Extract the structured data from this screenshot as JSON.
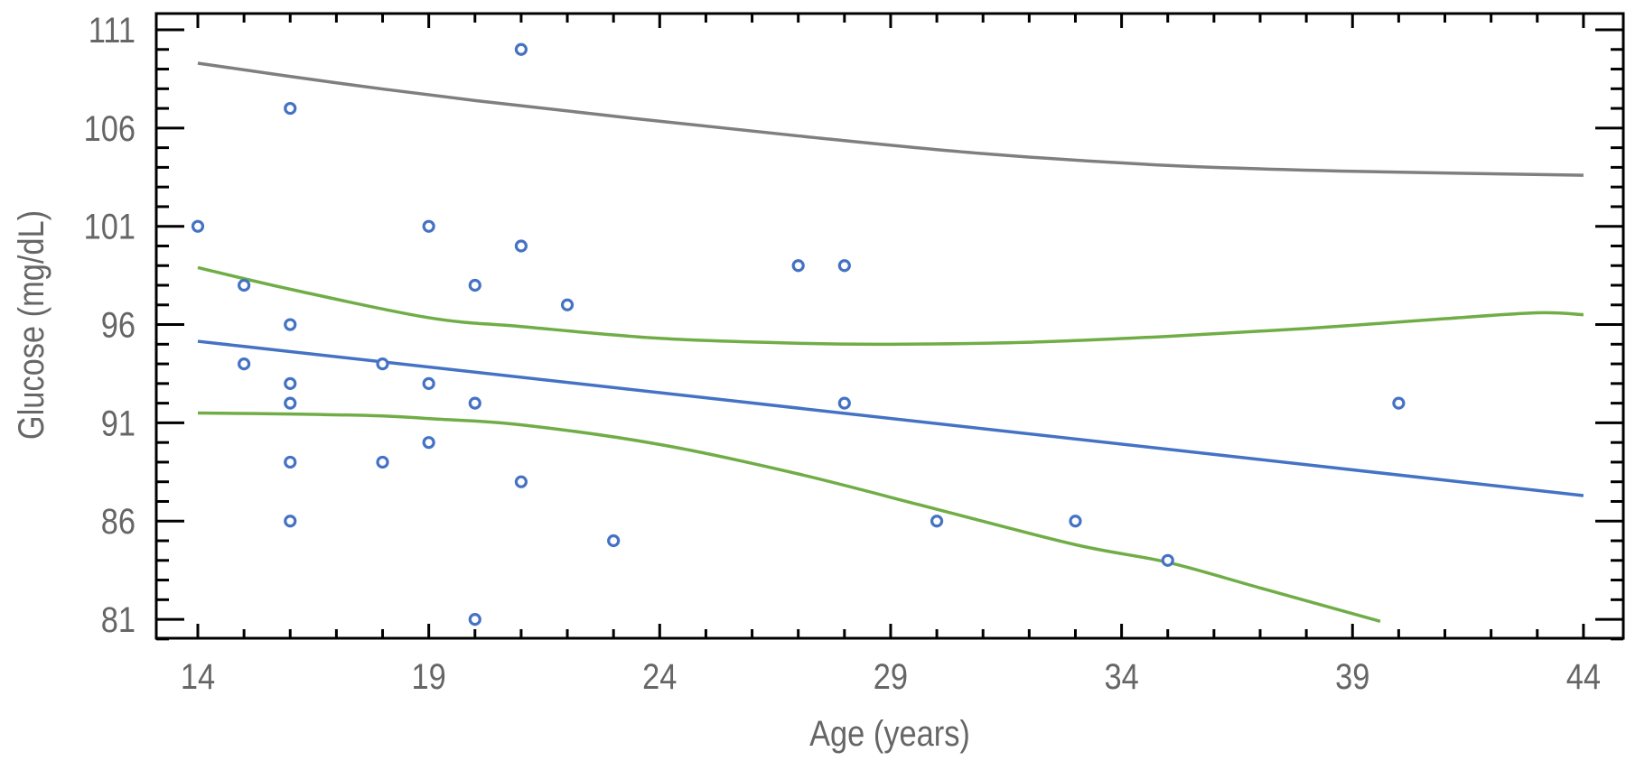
{
  "chart_data": {
    "type": "scatter",
    "title": "",
    "xlabel": "Age (years)",
    "ylabel": "Glucose (mg/dL)",
    "xlim": [
      13.1,
      44.9
    ],
    "ylim": [
      80.0,
      111.8
    ],
    "xticks": [
      14,
      19,
      24,
      29,
      34,
      39,
      44
    ],
    "yticks": [
      81,
      86,
      91,
      96,
      101,
      106,
      111
    ],
    "x_minor_step": 1,
    "y_minor_step": 1,
    "grid": false,
    "legend": "none",
    "colors": {
      "points": "#4472C4",
      "fit": "#4472C4",
      "confidence": "#70AD47",
      "prediction": "#7F7F7F",
      "axis": "#000000",
      "text": "#666666"
    },
    "series": [
      {
        "name": "Observations",
        "kind": "scatter",
        "points": [
          [
            14,
            101
          ],
          [
            15,
            98
          ],
          [
            15,
            94
          ],
          [
            16,
            107
          ],
          [
            16,
            96
          ],
          [
            16,
            93
          ],
          [
            16,
            92
          ],
          [
            16,
            89
          ],
          [
            16,
            86
          ],
          [
            18,
            94
          ],
          [
            18,
            89
          ],
          [
            19,
            101
          ],
          [
            19,
            93
          ],
          [
            19,
            90
          ],
          [
            20,
            98
          ],
          [
            20,
            92
          ],
          [
            20,
            81
          ],
          [
            21,
            110
          ],
          [
            21,
            100
          ],
          [
            21,
            88
          ],
          [
            22,
            97
          ],
          [
            23,
            85
          ],
          [
            27,
            99
          ],
          [
            28,
            99
          ],
          [
            28,
            92
          ],
          [
            30,
            86
          ],
          [
            33,
            86
          ],
          [
            35,
            84
          ],
          [
            40,
            92
          ]
        ]
      },
      {
        "name": "Regression fit",
        "kind": "line",
        "points": [
          [
            14,
            95.15
          ],
          [
            44,
            87.3
          ]
        ]
      },
      {
        "name": "Upper confidence band",
        "kind": "line",
        "points": [
          [
            14,
            98.9
          ],
          [
            16,
            97.8
          ],
          [
            19,
            96.35
          ],
          [
            21,
            95.9
          ],
          [
            24,
            95.3
          ],
          [
            27,
            95.05
          ],
          [
            29,
            95.0
          ],
          [
            32,
            95.1
          ],
          [
            35,
            95.4
          ],
          [
            38,
            95.8
          ],
          [
            41,
            96.3
          ],
          [
            43,
            96.6
          ],
          [
            44,
            96.5
          ]
        ]
      },
      {
        "name": "Lower confidence band",
        "kind": "line",
        "points": [
          [
            14,
            91.5
          ],
          [
            16,
            91.45
          ],
          [
            18,
            91.35
          ],
          [
            19.1,
            91.2
          ],
          [
            21,
            90.9
          ],
          [
            24,
            89.9
          ],
          [
            27,
            88.4
          ],
          [
            30,
            86.6
          ],
          [
            33,
            84.8
          ],
          [
            35,
            83.9
          ],
          [
            37,
            82.6
          ],
          [
            39.6,
            80.9
          ]
        ]
      },
      {
        "name": "Upper prediction bound",
        "kind": "line",
        "points": [
          [
            14,
            109.3
          ],
          [
            17,
            108.3
          ],
          [
            20,
            107.4
          ],
          [
            23.4,
            106.5
          ],
          [
            27,
            105.6
          ],
          [
            31,
            104.7
          ],
          [
            35,
            104.1
          ],
          [
            39,
            103.8
          ],
          [
            44,
            103.6
          ]
        ]
      }
    ]
  }
}
